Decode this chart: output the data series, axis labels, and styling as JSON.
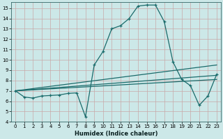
{
  "xlabel": "Humidex (Indice chaleur)",
  "ylabel": "",
  "xlim": [
    -0.5,
    23.5
  ],
  "ylim": [
    4,
    15.6
  ],
  "yticks": [
    4,
    5,
    6,
    7,
    8,
    9,
    10,
    11,
    12,
    13,
    14,
    15
  ],
  "xticks": [
    0,
    1,
    2,
    3,
    4,
    5,
    6,
    7,
    8,
    9,
    10,
    11,
    12,
    13,
    14,
    15,
    16,
    17,
    18,
    19,
    20,
    21,
    22,
    23
  ],
  "bg_color": "#cce8e8",
  "grid_color_v": "#c8a8a8",
  "grid_color_h": "#c8a8a8",
  "line_color": "#1a6b6b",
  "line1_x": [
    0,
    1,
    2,
    3,
    4,
    5,
    6,
    7,
    8,
    9,
    10,
    11,
    12,
    13,
    14,
    15,
    16,
    17,
    18,
    19,
    20,
    21,
    22,
    23
  ],
  "line1_y": [
    7.0,
    6.4,
    6.3,
    6.5,
    6.55,
    6.6,
    6.75,
    6.8,
    4.5,
    9.5,
    10.8,
    13.0,
    13.3,
    14.0,
    15.2,
    15.3,
    15.3,
    13.7,
    9.8,
    8.1,
    7.5,
    5.6,
    6.5,
    8.6
  ],
  "line2_x": [
    0,
    23
  ],
  "line2_y": [
    7.0,
    9.5
  ],
  "line3_x": [
    0,
    23
  ],
  "line3_y": [
    7.0,
    8.5
  ],
  "line4_x": [
    0,
    23
  ],
  "line4_y": [
    7.0,
    8.1
  ]
}
